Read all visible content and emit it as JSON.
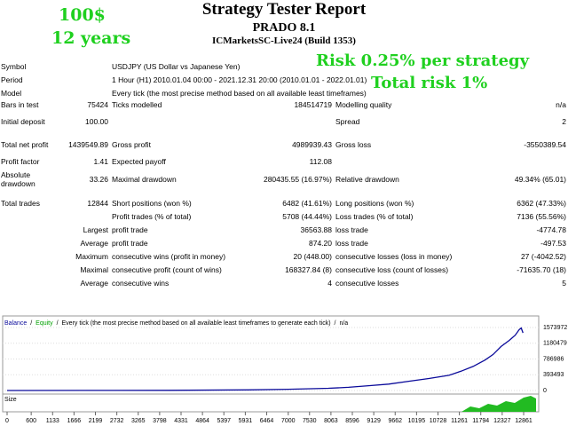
{
  "header": {
    "tags": [
      "100$",
      "12 years"
    ],
    "title": "Strategy Tester Report",
    "subtitle": "PRADO 8.1",
    "server": "ICMarketsSC-Live24 (Build 1353)",
    "notes": [
      "Risk 0.25% per strategy",
      "Total risk 1%"
    ]
  },
  "report": {
    "rows": [
      [
        "Symbol",
        null,
        "USDJPY (US Dollar vs Japanese Yen)",
        null,
        null,
        null
      ],
      [
        "Period",
        null,
        "1 Hour (H1) 2010.01.04 00:00 - 2021.12.31 20:00 (2010.01.01 - 2022.01.01)",
        null,
        null,
        null
      ],
      [
        "Model",
        null,
        "Every tick (the most precise method based on all available least timeframes)",
        null,
        null,
        null
      ],
      [
        "Bars in test",
        "75424",
        "Ticks modelled",
        "184514719",
        "Modelling quality",
        "n/a"
      ],
      [
        "Initial deposit",
        "100.00",
        null,
        null,
        "Spread",
        "2"
      ],
      [
        "Total net profit",
        "1439549.89",
        "Gross profit",
        "4989939.43",
        "Gross loss",
        "-3550389.54"
      ],
      [
        "Profit factor",
        "1.41",
        "Expected payoff",
        "112.08",
        null,
        null
      ],
      [
        "Absolute drawdown",
        "33.26",
        "Maximal drawdown",
        "280435.55 (16.97%)",
        "Relative drawdown",
        "49.34% (65.01)"
      ],
      [
        "Total trades",
        "12844",
        "Short positions (won %)",
        "6482 (41.61%)",
        "Long positions (won %)",
        "6362 (47.33%)"
      ],
      [
        null,
        null,
        "Profit trades (% of total)",
        "5708 (44.44%)",
        "Loss trades (% of total)",
        "7136 (55.56%)"
      ],
      [
        null,
        "Largest",
        "profit trade",
        "36563.88",
        "loss trade",
        "-4774.78"
      ],
      [
        null,
        "Average",
        "profit trade",
        "874.20",
        "loss trade",
        "-497.53"
      ],
      [
        null,
        "Maximum",
        "consecutive wins (profit in money)",
        "20 (448.00)",
        "consecutive losses (loss in money)",
        "27 (-4042.52)"
      ],
      [
        null,
        "Maximal",
        "consecutive profit (count of wins)",
        "168327.84 (8)",
        "consecutive loss (count of losses)",
        "-71635.70 (18)"
      ],
      [
        null,
        "Average",
        "consecutive wins",
        "4",
        "consecutive losses",
        "5"
      ]
    ]
  },
  "chart_data": {
    "type": "line",
    "separator": "/",
    "equity_label": "Equity",
    "equity_color": "#00a000",
    "legend_note": "Every tick (the most precise method based on all available least timeframes to generate each tick)",
    "quality": "n/a",
    "panel_label": "Size",
    "x": [
      0,
      2000,
      4000,
      6000,
      7000,
      8000,
      8500,
      9000,
      9500,
      10000,
      10500,
      11000,
      11300,
      11600,
      11900,
      12100,
      12300,
      12500,
      12650,
      12750,
      12800,
      12844
    ],
    "series": [
      {
        "name": "Balance",
        "color": "#0a0a9a",
        "values": [
          100,
          2000,
          5000,
          15000,
          30000,
          55000,
          80000,
          120000,
          160000,
          230000,
          300000,
          380000,
          480000,
          600000,
          760000,
          900000,
          1100000,
          1250000,
          1380000,
          1520000,
          1560000,
          1439650
        ]
      }
    ],
    "xlim": [
      0,
      13192
    ],
    "ylim": [
      0,
      1817800
    ],
    "xticks": [
      0,
      600,
      1133,
      1666,
      2199,
      2732,
      3265,
      3798,
      4331,
      4864,
      5397,
      5931,
      6464,
      7000,
      7530,
      8063,
      8596,
      9129,
      9662,
      10195,
      10728,
      11261,
      11794,
      12327,
      12861
    ],
    "yticks": [
      0,
      393493,
      786986,
      1180479,
      1573972
    ]
  }
}
